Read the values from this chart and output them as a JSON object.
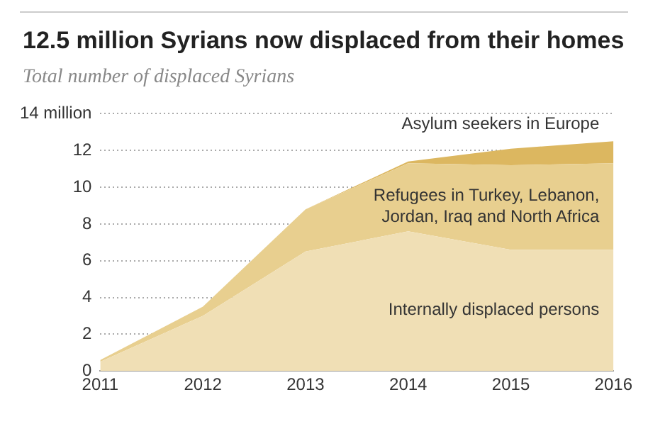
{
  "chart_data": {
    "type": "area",
    "title": "12.5 million Syrians now displaced from their homes",
    "subtitle": "Total number of displaced Syrians",
    "categories": [
      "2011",
      "2012",
      "2013",
      "2014",
      "2015",
      "2016"
    ],
    "stacked": true,
    "series": [
      {
        "name": "Internally displaced persons",
        "color": "#f0dfb5",
        "values": [
          0.5,
          3.0,
          6.5,
          7.6,
          6.6,
          6.6
        ]
      },
      {
        "name": "Refugees in Turkey, Lebanon, Jordan, Iraq and North Africa",
        "color": "#e8cf8f",
        "values": [
          0.1,
          0.5,
          2.3,
          3.7,
          4.6,
          4.7
        ]
      },
      {
        "name": "Asylum seekers in Europe",
        "color": "#dcb760",
        "values": [
          null,
          null,
          0,
          0.1,
          0.9,
          1.2
        ]
      }
    ],
    "ylim": [
      0,
      14
    ],
    "yticks": [
      0,
      2,
      4,
      6,
      8,
      10,
      12,
      {
        "value": 14,
        "label": "14 million"
      }
    ],
    "grid": "y"
  }
}
